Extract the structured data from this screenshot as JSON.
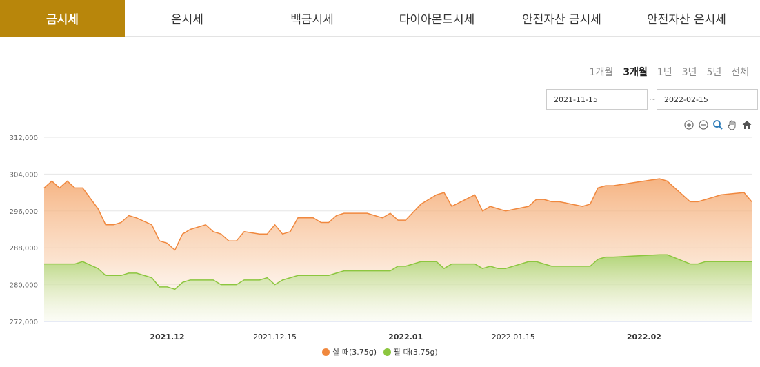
{
  "tabs": [
    {
      "label": "금시세",
      "active": true
    },
    {
      "label": "은시세",
      "active": false
    },
    {
      "label": "백금시세",
      "active": false
    },
    {
      "label": "다이아몬드시세",
      "active": false
    },
    {
      "label": "안전자산 금시세",
      "active": false
    },
    {
      "label": "안전자산 은시세",
      "active": false
    }
  ],
  "periods": [
    {
      "label": "1개월",
      "selected": false
    },
    {
      "label": "3개월",
      "selected": true
    },
    {
      "label": "1년",
      "selected": false
    },
    {
      "label": "3년",
      "selected": false
    },
    {
      "label": "5년",
      "selected": false
    },
    {
      "label": "전체",
      "selected": false
    }
  ],
  "date_range": {
    "start": "2021-11-15",
    "separator": "~",
    "end": "2022-02-15"
  },
  "toolbar_icons": [
    "zoom-in-icon",
    "zoom-out-icon",
    "magnifier-icon",
    "pan-hand-icon",
    "home-icon"
  ],
  "colors": {
    "accent": "#b8860b",
    "buy": "#f0883e",
    "sell": "#8cc63f"
  },
  "chart_data": {
    "type": "area",
    "x_tick_labels": [
      "2021.12",
      "2021.12.15",
      "2022.01",
      "2022.01.15",
      "2022.02"
    ],
    "x_tick_bold": [
      true,
      false,
      true,
      false,
      true
    ],
    "y_tick_labels": [
      "312,000",
      "304,000",
      "296,000",
      "288,000",
      "280,000",
      "272,000"
    ],
    "ylim": [
      272000,
      312000
    ],
    "grid": true,
    "legend": "bottom-center",
    "series": [
      {
        "name": "살 때(3.75g)",
        "color": "#f0883e",
        "x": [
          "2021-11-15",
          "2021-11-16",
          "2021-11-17",
          "2021-11-18",
          "2021-11-19",
          "2021-11-20",
          "2021-11-22",
          "2021-11-23",
          "2021-11-24",
          "2021-11-25",
          "2021-11-26",
          "2021-11-27",
          "2021-11-29",
          "2021-11-30",
          "2021-12-01",
          "2021-12-02",
          "2021-12-03",
          "2021-12-04",
          "2021-12-06",
          "2021-12-07",
          "2021-12-08",
          "2021-12-09",
          "2021-12-10",
          "2021-12-11",
          "2021-12-13",
          "2021-12-14",
          "2021-12-15",
          "2021-12-16",
          "2021-12-17",
          "2021-12-18",
          "2021-12-20",
          "2021-12-21",
          "2021-12-22",
          "2021-12-23",
          "2021-12-24",
          "2021-12-27",
          "2021-12-28",
          "2021-12-29",
          "2021-12-30",
          "2021-12-31",
          "2022-01-01",
          "2022-01-03",
          "2022-01-04",
          "2022-01-05",
          "2022-01-06",
          "2022-01-07",
          "2022-01-10",
          "2022-01-11",
          "2022-01-12",
          "2022-01-13",
          "2022-01-14",
          "2022-01-17",
          "2022-01-18",
          "2022-01-19",
          "2022-01-20",
          "2022-01-21",
          "2022-01-24",
          "2022-01-25",
          "2022-01-26",
          "2022-01-27",
          "2022-01-28",
          "2022-02-03",
          "2022-02-04",
          "2022-02-07",
          "2022-02-08",
          "2022-02-09",
          "2022-02-10",
          "2022-02-11",
          "2022-02-14",
          "2022-02-15"
        ],
        "values": [
          301000,
          302500,
          301000,
          302500,
          301000,
          301000,
          296500,
          293000,
          293000,
          293500,
          295000,
          294500,
          293000,
          289500,
          289000,
          287500,
          291000,
          292000,
          293000,
          291500,
          291000,
          289500,
          289500,
          291500,
          291000,
          291000,
          293000,
          291000,
          291500,
          294500,
          294500,
          293500,
          293500,
          295000,
          295500,
          295500,
          295000,
          294500,
          295500,
          294000,
          294000,
          297500,
          298500,
          299500,
          300000,
          297000,
          299500,
          296000,
          297000,
          296500,
          296000,
          297000,
          298500,
          298500,
          298000,
          298000,
          297000,
          297500,
          301000,
          301500,
          301500,
          303000,
          302500,
          298000,
          298000,
          298500,
          299000,
          299500,
          300000,
          298000
        ]
      },
      {
        "name": "팔 때(3.75g)",
        "color": "#8cc63f",
        "x": [
          "2021-11-15",
          "2021-11-16",
          "2021-11-17",
          "2021-11-18",
          "2021-11-19",
          "2021-11-20",
          "2021-11-22",
          "2021-11-23",
          "2021-11-24",
          "2021-11-25",
          "2021-11-26",
          "2021-11-27",
          "2021-11-29",
          "2021-11-30",
          "2021-12-01",
          "2021-12-02",
          "2021-12-03",
          "2021-12-04",
          "2021-12-06",
          "2021-12-07",
          "2021-12-08",
          "2021-12-09",
          "2021-12-10",
          "2021-12-11",
          "2021-12-13",
          "2021-12-14",
          "2021-12-15",
          "2021-12-16",
          "2021-12-17",
          "2021-12-18",
          "2021-12-20",
          "2021-12-21",
          "2021-12-22",
          "2021-12-23",
          "2021-12-24",
          "2021-12-27",
          "2021-12-28",
          "2021-12-29",
          "2021-12-30",
          "2021-12-31",
          "2022-01-01",
          "2022-01-03",
          "2022-01-04",
          "2022-01-05",
          "2022-01-06",
          "2022-01-07",
          "2022-01-10",
          "2022-01-11",
          "2022-01-12",
          "2022-01-13",
          "2022-01-14",
          "2022-01-17",
          "2022-01-18",
          "2022-01-19",
          "2022-01-20",
          "2022-01-21",
          "2022-01-24",
          "2022-01-25",
          "2022-01-26",
          "2022-01-27",
          "2022-01-28",
          "2022-02-03",
          "2022-02-04",
          "2022-02-07",
          "2022-02-08",
          "2022-02-09",
          "2022-02-10",
          "2022-02-11",
          "2022-02-14",
          "2022-02-15"
        ],
        "values": [
          284500,
          284500,
          284500,
          284500,
          284500,
          285000,
          283500,
          282000,
          282000,
          282000,
          282500,
          282500,
          281500,
          279500,
          279500,
          279000,
          280500,
          281000,
          281000,
          281000,
          280000,
          280000,
          280000,
          281000,
          281000,
          281500,
          280000,
          281000,
          281500,
          282000,
          282000,
          282000,
          282000,
          282500,
          283000,
          283000,
          283000,
          283000,
          283000,
          284000,
          284000,
          285000,
          285000,
          285000,
          283500,
          284500,
          284500,
          283500,
          284000,
          283500,
          283500,
          285000,
          285000,
          284500,
          284000,
          284000,
          284000,
          284000,
          285500,
          286000,
          286000,
          286500,
          286500,
          284500,
          284500,
          285000,
          285000,
          285000,
          285000,
          285000
        ]
      }
    ]
  }
}
